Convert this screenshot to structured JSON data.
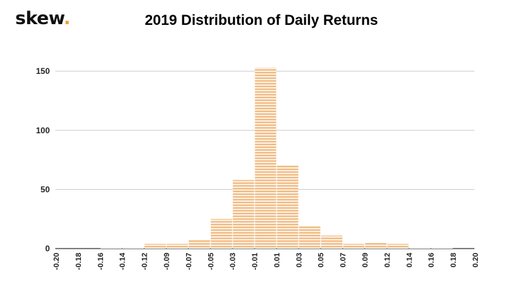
{
  "brand": {
    "name": "skew",
    "dot": ".",
    "accent": "#f29d38"
  },
  "chart_data": {
    "type": "bar",
    "title": "2019 Distribution of Daily Returns",
    "xlabel": "",
    "ylabel": "",
    "x_ticks": [
      "-0.20",
      "-0.18",
      "-0.16",
      "-0.14",
      "-0.12",
      "-0.09",
      "-0.07",
      "-0.05",
      "-0.03",
      "-0.01",
      "0.01",
      "0.03",
      "0.05",
      "0.07",
      "0.09",
      "0.12",
      "0.14",
      "0.16",
      "0.18",
      "0.20"
    ],
    "bin_edges": [
      -0.2,
      -0.18,
      -0.16,
      -0.14,
      -0.12,
      -0.09,
      -0.07,
      -0.05,
      -0.03,
      -0.01,
      0.01,
      0.03,
      0.05,
      0.07,
      0.09,
      0.12,
      0.14,
      0.16,
      0.18,
      0.2
    ],
    "values": [
      0,
      0,
      1,
      1,
      4,
      4,
      7,
      25,
      58,
      153,
      71,
      19,
      11,
      4,
      5,
      4,
      1,
      1,
      0
    ],
    "ylim": [
      0,
      160
    ],
    "y_ticks": [
      0,
      50,
      100,
      150
    ],
    "grid": true,
    "bar_color": "#f2bd85",
    "legend": "none"
  }
}
